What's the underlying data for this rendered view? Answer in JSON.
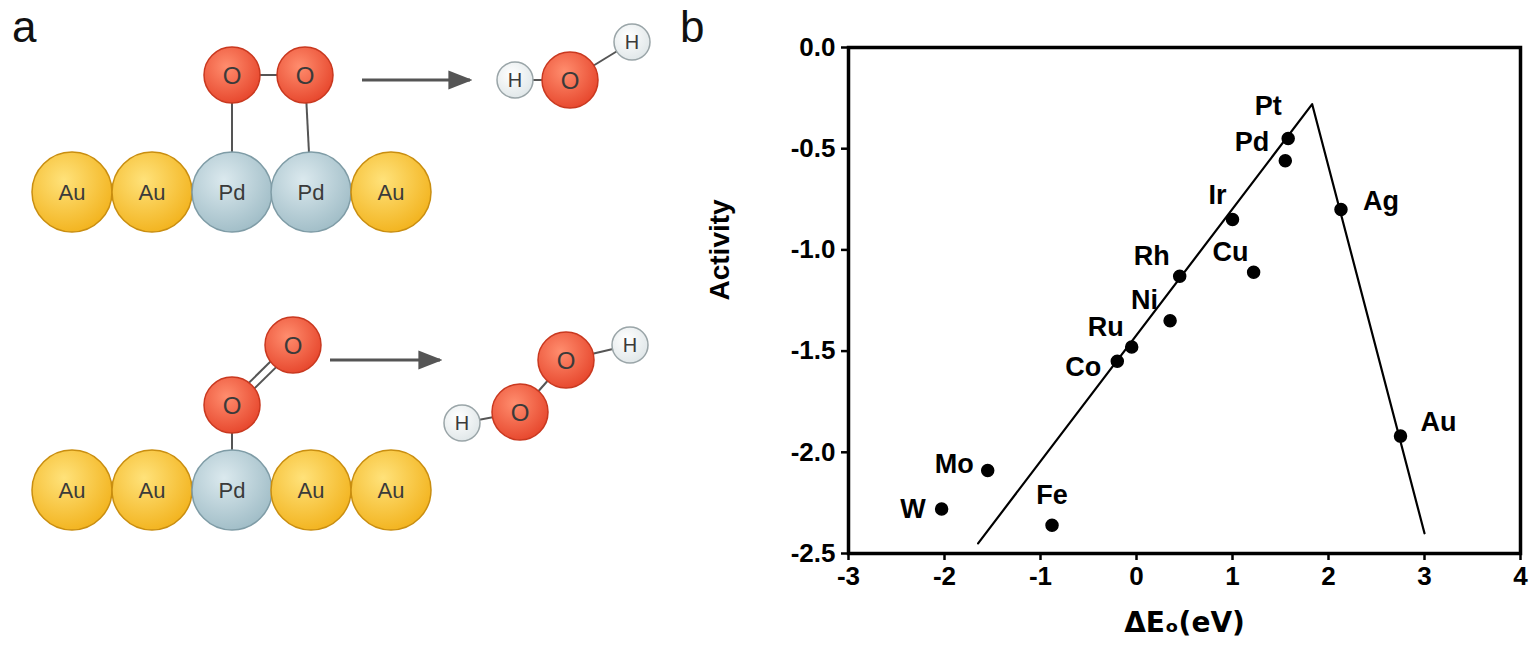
{
  "diagram": {
    "panel_label": "a",
    "top": {
      "surface": [
        "Au",
        "Au",
        "Pd",
        "Pd",
        "Au"
      ],
      "adsorbate": [
        "O",
        "O"
      ],
      "product": [
        "H",
        "O",
        "H"
      ]
    },
    "bottom": {
      "surface": [
        "Au",
        "Au",
        "Pd",
        "Au",
        "Au"
      ],
      "adsorbate": [
        "O",
        "O"
      ],
      "product": [
        "H",
        "O",
        "O",
        "H"
      ]
    }
  },
  "chart_data": {
    "type": "scatter",
    "panel_label": "b",
    "xlabel": "ΔEₒ(eV)",
    "ylabel": "Activity",
    "xlim": [
      -3,
      4
    ],
    "xticks": [
      -3,
      -2,
      -1,
      0,
      1,
      2,
      3,
      4
    ],
    "ylim": [
      -2.5,
      0.0
    ],
    "yticks": [
      {
        "value": 0,
        "label": "0.0"
      },
      -0.5,
      {
        "value": -1,
        "label": "-1.0"
      },
      -1.5,
      {
        "value": -2,
        "label": "-2.0"
      },
      -2.5
    ],
    "grid": false,
    "series": [
      {
        "type": "scatter",
        "color": "#000000",
        "marker": "circle",
        "labels": [
          "Pt",
          "Pd",
          "Ir",
          "Cu",
          "Rh",
          "Ni",
          "Ru",
          "Co",
          "Mo",
          "W",
          "Fe",
          "Ag",
          "Au"
        ],
        "x": [
          1.58,
          1.55,
          1.0,
          1.22,
          0.45,
          0.35,
          -0.05,
          -0.2,
          -1.55,
          -2.03,
          -0.88,
          2.13,
          2.75
        ],
        "values": [
          -0.45,
          -0.56,
          -0.85,
          -1.11,
          -1.13,
          -1.35,
          -1.48,
          -1.55,
          -2.09,
          -2.28,
          -2.36,
          -0.8,
          -1.92
        ]
      },
      {
        "type": "line",
        "color": "#000000",
        "line_style": "solid",
        "x": [
          -1.65,
          1.83,
          3.0
        ],
        "values": [
          -2.45,
          -0.28,
          -2.4
        ]
      }
    ]
  }
}
